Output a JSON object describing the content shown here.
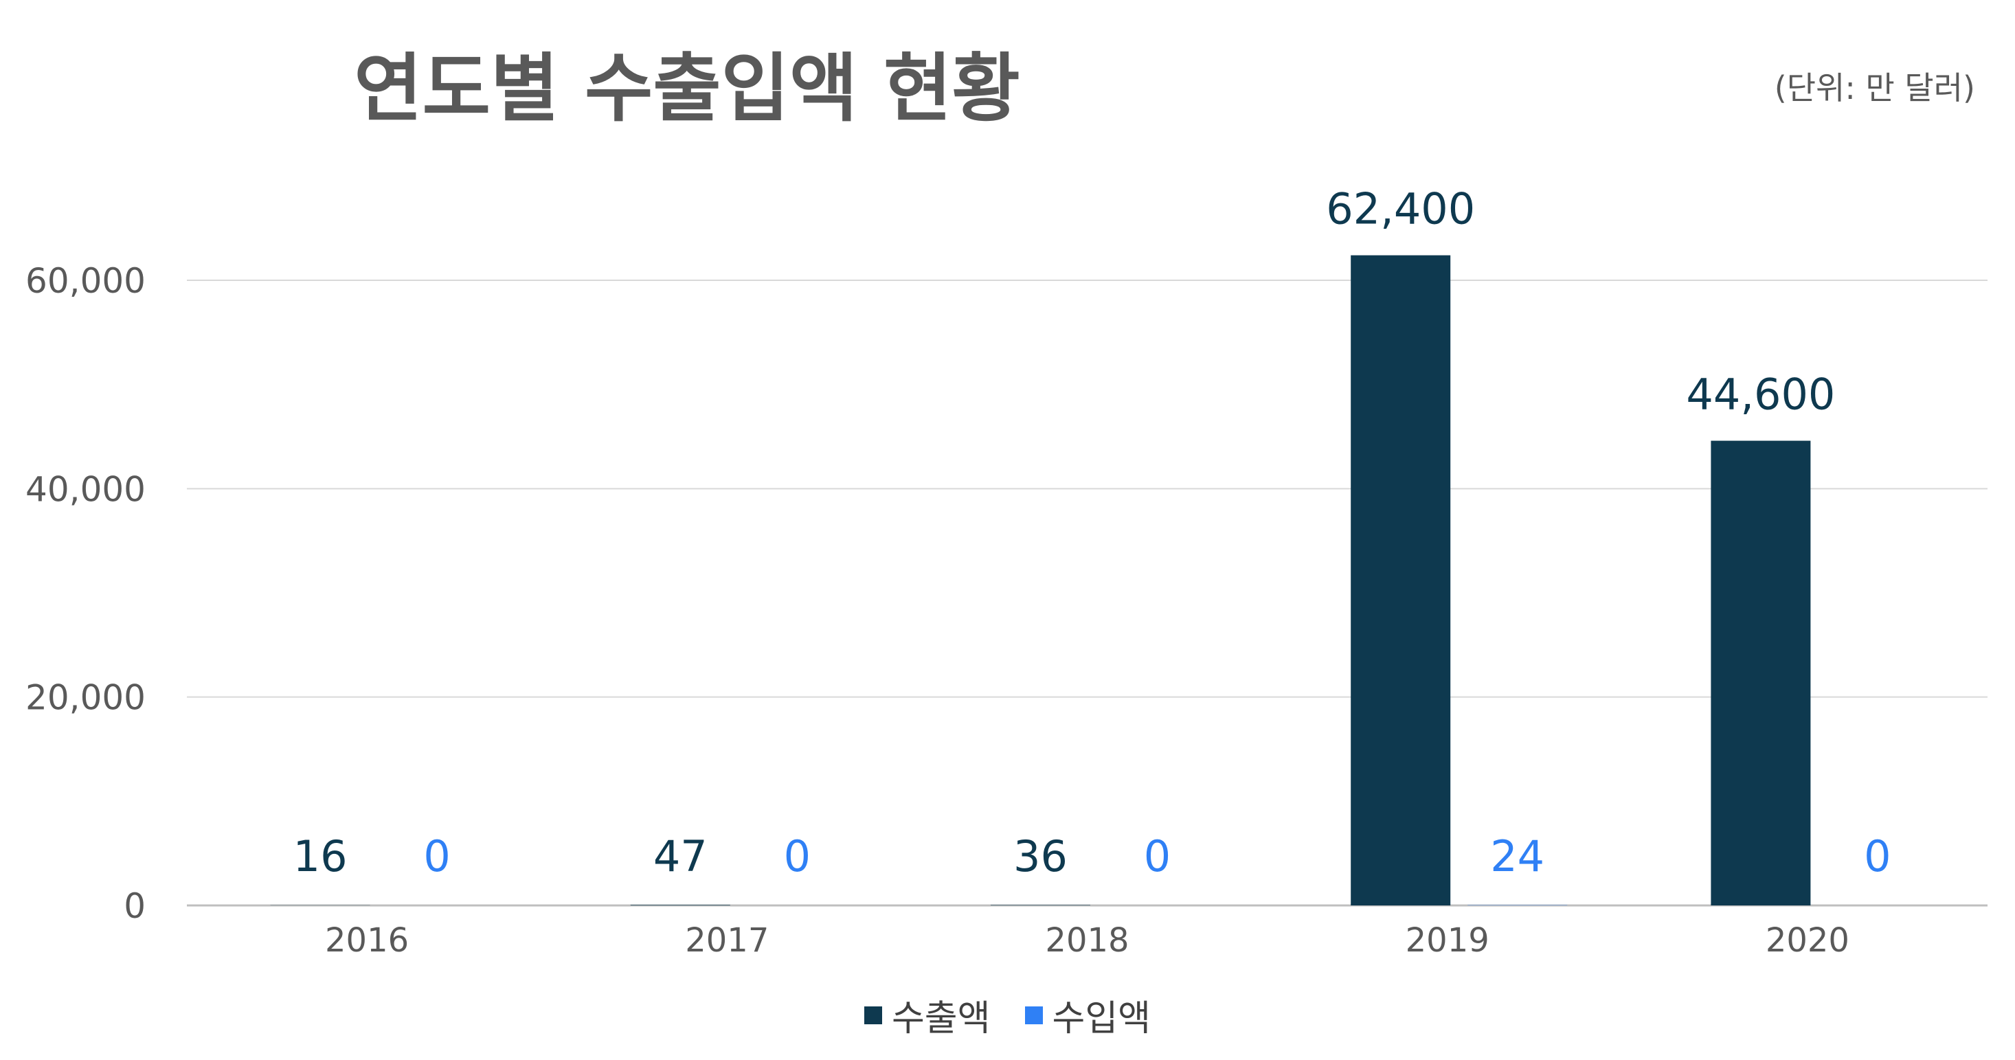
{
  "chart_data": {
    "type": "bar",
    "title": "연도별 수출입액 현황",
    "unit_label": "(단위: 만 달러)",
    "categories": [
      "2016",
      "2017",
      "2018",
      "2019",
      "2020"
    ],
    "series": [
      {
        "name": "수출액",
        "color": "#0e394f",
        "values": [
          16,
          47,
          36,
          62400,
          44600
        ],
        "labels": [
          "16",
          "47",
          "36",
          "62,400",
          "44,600"
        ]
      },
      {
        "name": "수입액",
        "color": "#2f80f5",
        "values": [
          0,
          0,
          0,
          24,
          0
        ],
        "labels": [
          "0",
          "0",
          "0",
          "24",
          "0"
        ]
      }
    ],
    "ylim": [
      0,
      60000
    ],
    "yticks": [
      0,
      20000,
      40000,
      60000
    ],
    "ytick_labels": [
      "0",
      "20,000",
      "40,000",
      "60,000"
    ],
    "grid": true,
    "legend_position": "bottom",
    "xlabel": "",
    "ylabel": ""
  }
}
